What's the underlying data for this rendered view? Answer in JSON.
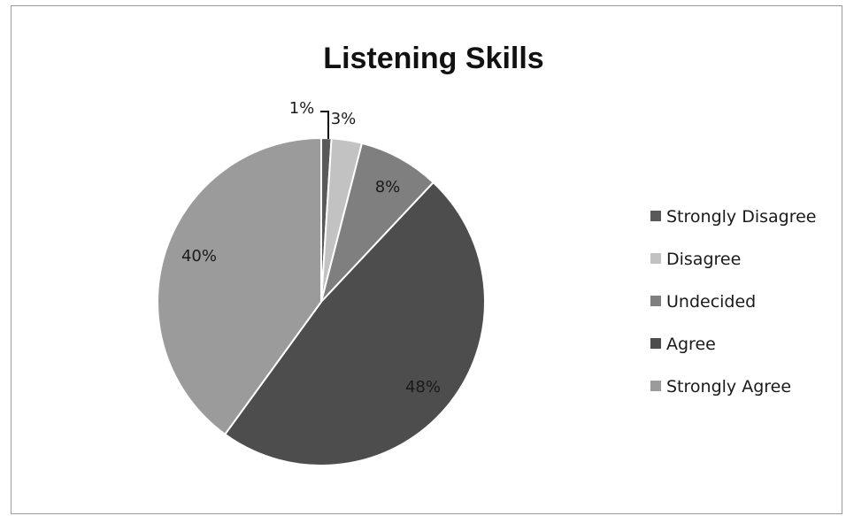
{
  "chart_data": {
    "type": "pie",
    "title": "Listening Skills",
    "categories": [
      "Strongly Disagree",
      "Disagree",
      "Undecided",
      "Agree",
      "Strongly Agree"
    ],
    "values": [
      1,
      3,
      8,
      48,
      40
    ],
    "value_labels": [
      "1%",
      "3%",
      "8%",
      "48%",
      "40%"
    ],
    "colors": [
      "#5a5a5a",
      "#c2c2c2",
      "#7f7f7f",
      "#4d4d4d",
      "#9b9b9b"
    ],
    "legend_position": "right"
  }
}
